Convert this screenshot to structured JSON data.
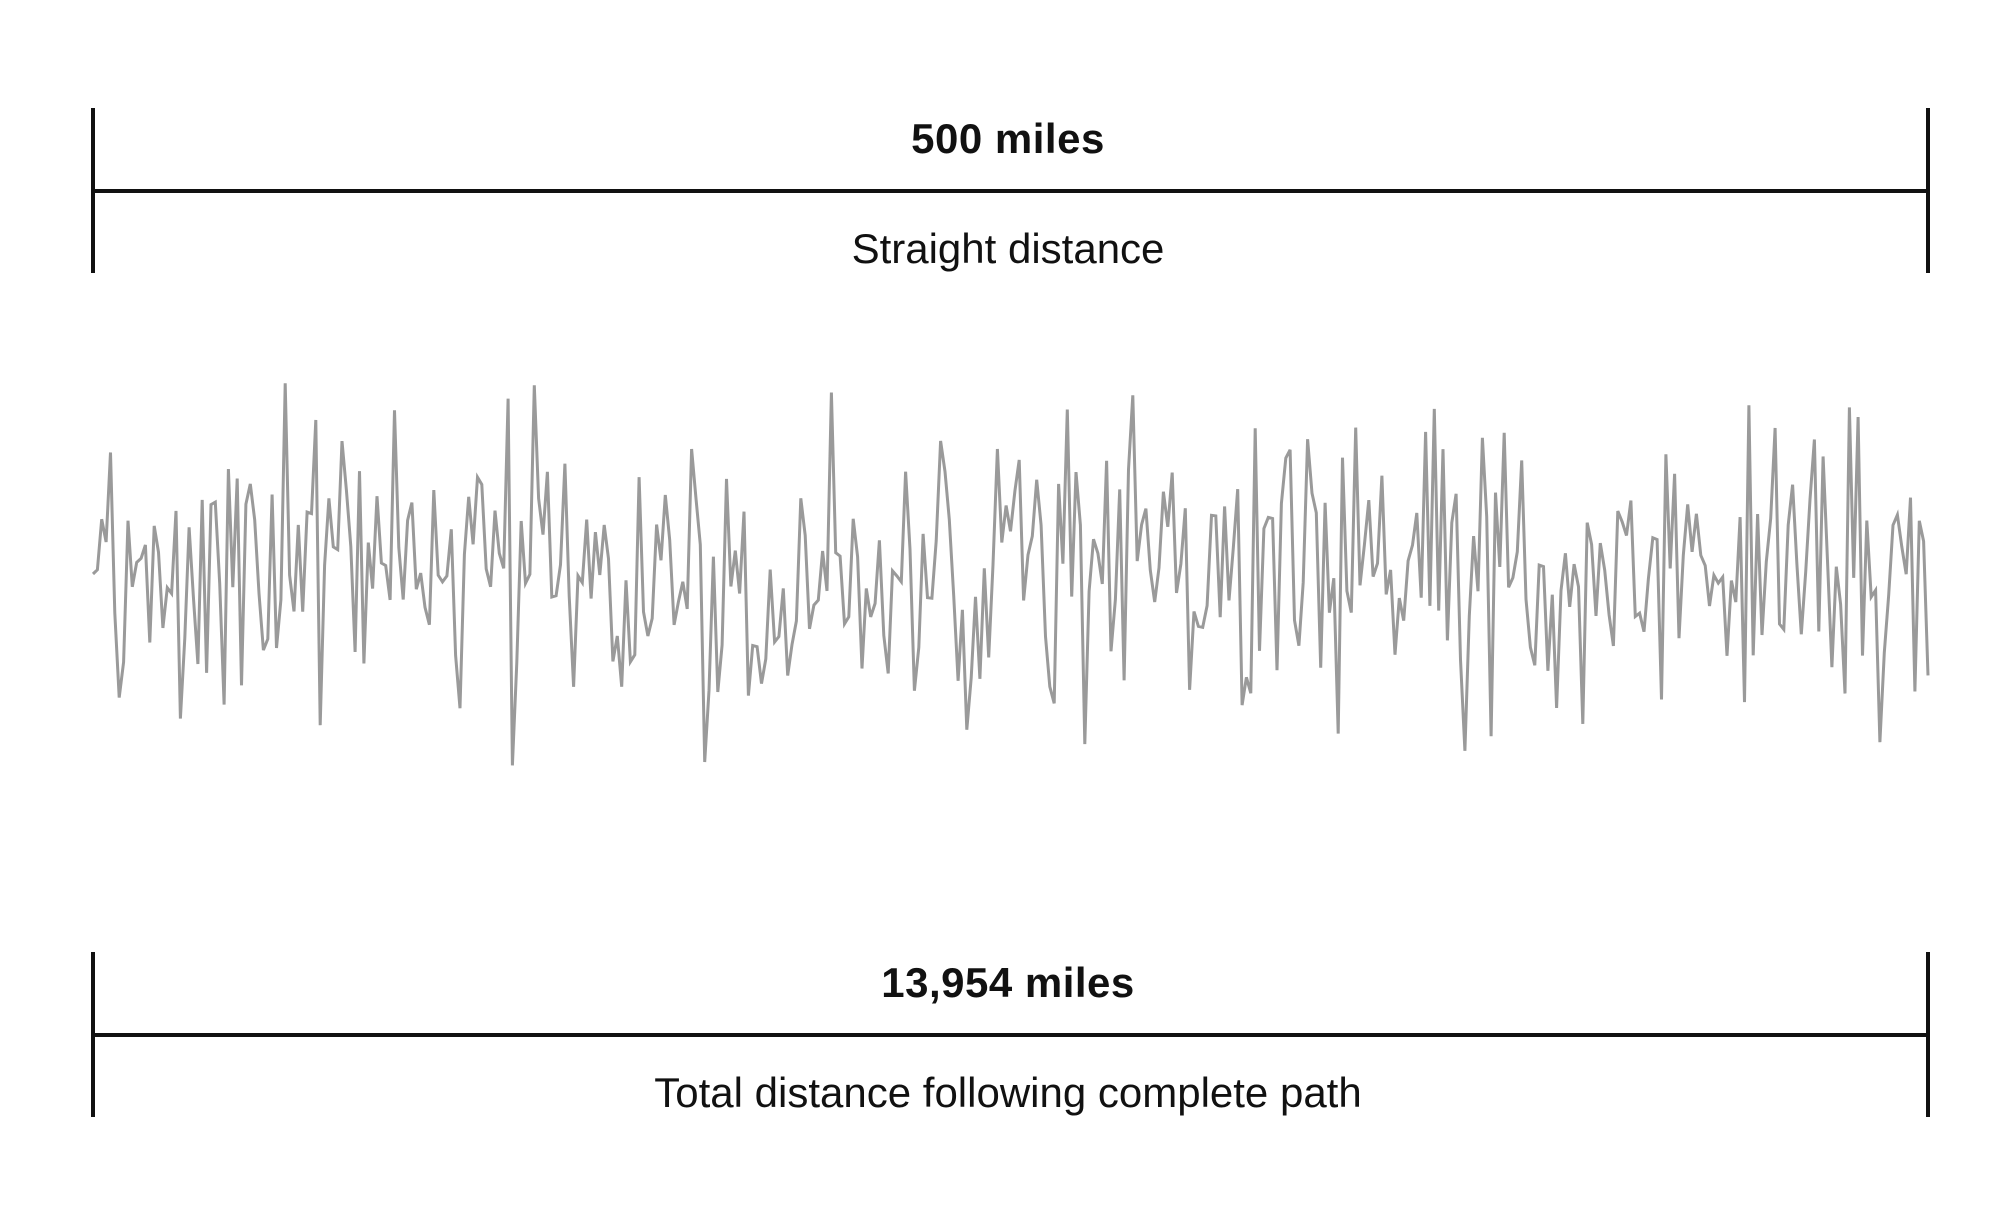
{
  "straight": {
    "value": "500 miles",
    "caption": "Straight distance"
  },
  "total": {
    "value": "13,954 miles",
    "caption": "Total distance following complete path"
  },
  "colors": {
    "line": "#111111",
    "path": "#9a9a9a"
  }
}
